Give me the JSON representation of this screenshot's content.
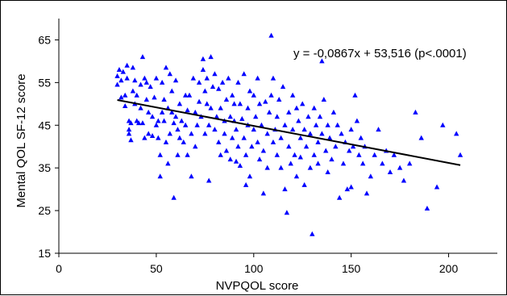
{
  "chart_data": {
    "type": "scatter",
    "xlabel": "NVPQOL score",
    "ylabel": "Mental QOL SF-12 score",
    "xlim": [
      0,
      225
    ],
    "ylim": [
      15,
      70
    ],
    "xticks": [
      0,
      50,
      100,
      150,
      200
    ],
    "yticks": [
      15,
      25,
      35,
      45,
      55,
      65
    ],
    "grid": false,
    "legend": "none",
    "marker_color": "#0000ff",
    "line_color": "#000000",
    "annotation": "y = -0,0867x + 53,516 (p<.0001)",
    "trendline": {
      "slope": -0.0867,
      "intercept": 53.516,
      "x_range": [
        30,
        206
      ]
    },
    "series": [
      {
        "marker": "triangle",
        "points": [
          [
            30,
            56.5
          ],
          [
            30,
            54.5
          ],
          [
            31,
            58
          ],
          [
            32,
            55.5
          ],
          [
            32,
            51.5
          ],
          [
            33,
            57.5
          ],
          [
            34,
            52
          ],
          [
            34,
            49.5
          ],
          [
            35,
            56
          ],
          [
            35,
            59
          ],
          [
            36,
            44
          ],
          [
            36,
            46
          ],
          [
            36,
            43
          ],
          [
            37,
            45.5
          ],
          [
            37,
            41.5
          ],
          [
            38,
            58.5
          ],
          [
            38,
            53
          ],
          [
            39,
            55.5
          ],
          [
            39,
            50
          ],
          [
            40,
            46
          ],
          [
            40,
            52
          ],
          [
            41,
            45.5
          ],
          [
            42,
            54.5
          ],
          [
            42,
            49
          ],
          [
            43,
            61
          ],
          [
            43,
            45.5
          ],
          [
            44,
            56
          ],
          [
            44,
            42
          ],
          [
            45,
            55
          ],
          [
            45,
            51
          ],
          [
            46,
            48
          ],
          [
            46,
            43
          ],
          [
            47,
            54
          ],
          [
            48,
            47
          ],
          [
            48,
            42.5
          ],
          [
            49,
            51.5
          ],
          [
            50,
            56
          ],
          [
            50,
            45
          ],
          [
            51,
            46
          ],
          [
            51,
            42
          ],
          [
            52,
            33
          ],
          [
            52,
            38
          ],
          [
            53,
            48
          ],
          [
            53,
            55
          ],
          [
            54,
            46
          ],
          [
            54,
            51
          ],
          [
            55,
            58.5
          ],
          [
            55,
            41
          ],
          [
            56,
            49
          ],
          [
            56,
            36
          ],
          [
            57,
            57
          ],
          [
            57,
            43
          ],
          [
            58,
            48
          ],
          [
            58,
            53
          ],
          [
            59,
            45.5
          ],
          [
            59,
            28
          ],
          [
            60,
            47
          ],
          [
            60,
            55.5
          ],
          [
            61,
            38
          ],
          [
            61,
            44
          ],
          [
            62,
            42
          ],
          [
            62,
            50
          ],
          [
            63,
            46
          ],
          [
            64,
            41
          ],
          [
            65,
            52
          ],
          [
            65,
            45
          ],
          [
            66,
            48.5
          ],
          [
            66,
            38
          ],
          [
            67,
            52
          ],
          [
            68,
            43
          ],
          [
            68,
            33
          ],
          [
            69,
            56
          ],
          [
            70,
            48
          ],
          [
            70,
            40
          ],
          [
            71,
            45
          ],
          [
            72,
            50.5
          ],
          [
            72,
            55
          ],
          [
            73,
            47
          ],
          [
            74,
            60.5
          ],
          [
            74,
            58
          ],
          [
            75,
            53
          ],
          [
            75,
            43
          ],
          [
            76,
            56
          ],
          [
            76,
            50
          ],
          [
            77,
            32
          ],
          [
            77,
            45
          ],
          [
            78,
            61
          ],
          [
            78,
            49
          ],
          [
            79,
            54
          ],
          [
            80,
            44
          ],
          [
            80,
            57
          ],
          [
            81,
            47
          ],
          [
            82,
            41
          ],
          [
            82,
            53.5
          ],
          [
            83,
            49
          ],
          [
            83,
            38
          ],
          [
            84,
            55
          ],
          [
            85,
            46
          ],
          [
            85,
            43
          ],
          [
            86,
            51
          ],
          [
            86,
            39
          ],
          [
            87,
            56
          ],
          [
            88,
            37
          ],
          [
            88,
            47
          ],
          [
            89,
            52
          ],
          [
            89,
            42
          ],
          [
            90,
            46
          ],
          [
            90,
            50
          ],
          [
            91,
            36.5
          ],
          [
            91,
            44
          ],
          [
            92,
            55
          ],
          [
            92,
            40
          ],
          [
            93,
            50
          ],
          [
            93,
            35.5
          ],
          [
            94,
            46.5
          ],
          [
            95,
            57
          ],
          [
            95,
            42
          ],
          [
            96,
            38
          ],
          [
            96,
            31
          ],
          [
            97,
            45
          ],
          [
            97,
            49
          ],
          [
            98,
            53
          ],
          [
            98,
            33
          ],
          [
            99,
            40
          ],
          [
            100,
            52
          ],
          [
            100,
            44
          ],
          [
            101,
            47
          ],
          [
            102,
            41
          ],
          [
            102,
            56
          ],
          [
            103,
            37
          ],
          [
            103,
            50
          ],
          [
            104,
            45
          ],
          [
            105,
            29
          ],
          [
            105,
            39
          ],
          [
            106,
            50.5
          ],
          [
            107,
            43
          ],
          [
            107,
            35
          ],
          [
            108,
            48
          ],
          [
            109,
            66
          ],
          [
            109,
            52
          ],
          [
            110,
            56
          ],
          [
            110,
            41
          ],
          [
            111,
            44
          ],
          [
            112,
            38
          ],
          [
            112,
            47
          ],
          [
            113,
            51
          ],
          [
            114,
            35
          ],
          [
            114,
            42
          ],
          [
            115,
            54
          ],
          [
            116,
            45
          ],
          [
            116,
            30
          ],
          [
            117,
            24.5
          ],
          [
            118,
            48
          ],
          [
            118,
            40
          ],
          [
            119,
            36
          ],
          [
            120,
            52
          ],
          [
            120,
            44
          ],
          [
            121,
            38
          ],
          [
            122,
            49
          ],
          [
            122,
            33
          ],
          [
            123,
            46
          ],
          [
            124,
            42
          ],
          [
            124,
            37.5
          ],
          [
            125,
            50
          ],
          [
            126,
            44
          ],
          [
            126,
            31
          ],
          [
            127,
            40
          ],
          [
            128,
            47
          ],
          [
            129,
            35
          ],
          [
            129,
            43
          ],
          [
            130,
            19.5
          ],
          [
            131,
            49
          ],
          [
            131,
            38
          ],
          [
            132,
            45
          ],
          [
            133,
            41
          ],
          [
            133,
            36
          ],
          [
            134,
            47
          ],
          [
            135,
            60
          ],
          [
            135,
            43
          ],
          [
            136,
            51
          ],
          [
            137,
            39
          ],
          [
            138,
            45
          ],
          [
            138,
            34
          ],
          [
            139,
            42
          ],
          [
            140,
            37
          ],
          [
            141,
            48
          ],
          [
            142,
            40
          ],
          [
            143,
            45
          ],
          [
            144,
            28
          ],
          [
            145,
            43
          ],
          [
            146,
            36
          ],
          [
            147,
            41
          ],
          [
            148,
            30
          ],
          [
            149,
            39
          ],
          [
            150,
            44
          ],
          [
            150,
            30.5
          ],
          [
            151,
            40
          ],
          [
            152,
            52
          ],
          [
            153,
            46
          ],
          [
            154,
            38
          ],
          [
            155,
            42
          ],
          [
            156,
            36
          ],
          [
            157,
            40
          ],
          [
            158,
            29
          ],
          [
            160,
            33
          ],
          [
            162,
            38
          ],
          [
            164,
            44
          ],
          [
            166,
            36
          ],
          [
            168,
            39
          ],
          [
            170,
            34
          ],
          [
            172,
            38
          ],
          [
            175,
            35
          ],
          [
            177,
            32
          ],
          [
            180,
            36
          ],
          [
            183,
            48
          ],
          [
            186,
            42
          ],
          [
            189,
            25.5
          ],
          [
            194,
            30.5
          ],
          [
            197,
            45
          ],
          [
            204,
            43
          ],
          [
            206,
            38
          ]
        ]
      }
    ]
  }
}
